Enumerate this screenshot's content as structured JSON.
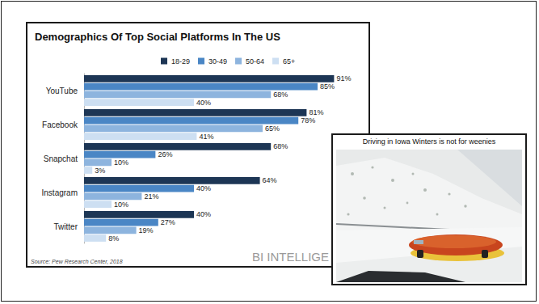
{
  "chart_data": {
    "type": "bar",
    "title": "Demographics Of Top Social Platforms In The US",
    "orientation": "horizontal",
    "categories": [
      "YouTube",
      "Facebook",
      "Snapchat",
      "Instagram",
      "Twitter"
    ],
    "series": [
      {
        "name": "18-29",
        "color": "#1d3655",
        "values": [
          91,
          81,
          68,
          64,
          40
        ],
        "value_labels": [
          "91%",
          "81%",
          "68%",
          "64%",
          "40%"
        ]
      },
      {
        "name": "30-49",
        "color": "#4a86c5",
        "values": [
          85,
          78,
          26,
          40,
          27
        ],
        "value_labels": [
          "85%",
          "78%",
          "26%",
          "40%",
          "27%"
        ]
      },
      {
        "name": "50-64",
        "color": "#8db4de",
        "values": [
          68,
          65,
          10,
          21,
          19
        ],
        "value_labels": [
          "68%",
          "65%",
          "10%",
          "21%",
          "19%"
        ]
      },
      {
        "name": "65+",
        "color": "#cddff2",
        "values": [
          40,
          41,
          3,
          10,
          8
        ],
        "value_labels": [
          "40%",
          "41%",
          "3%",
          "10%",
          "8%"
        ]
      }
    ],
    "xlim": [
      0,
      100
    ],
    "data_labels": true,
    "tick_labels": "y",
    "grid": false,
    "stacked": false,
    "legend": "top",
    "annotations": [
      "Source: Pew Research Center, 2018",
      "BI INTELLIGE"
    ]
  },
  "inset": {
    "caption": "Driving in Iowa Winters is not for weenies"
  }
}
